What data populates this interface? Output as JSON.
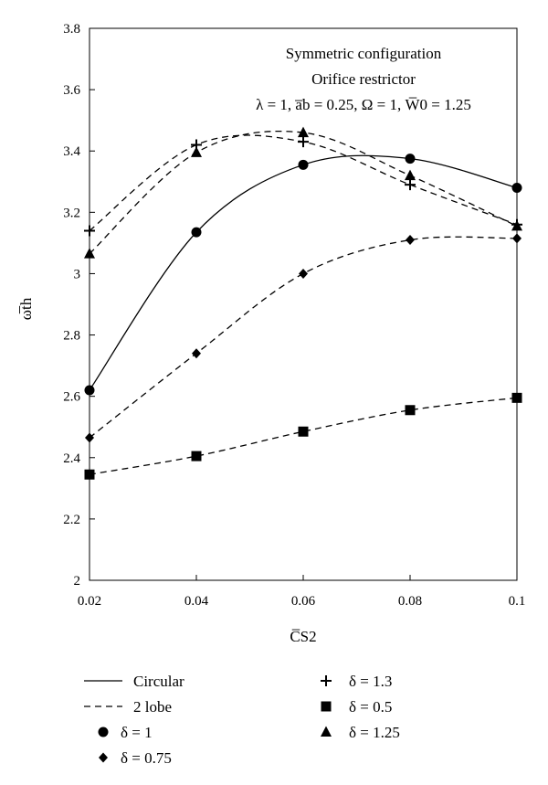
{
  "chart_data": {
    "type": "line",
    "annotations": [
      "Symmetric configuration",
      "Orifice restrictor",
      "λ = 1, a̅b = 0.25, Ω = 1, W̅0 = 1.25"
    ],
    "xlabel": "C̅S2",
    "ylabel": "ω̅th",
    "xlim": [
      0.02,
      0.1
    ],
    "ylim": [
      2,
      3.8
    ],
    "xticks": [
      0.02,
      0.04,
      0.06,
      0.08,
      0.1
    ],
    "xtick_labels": [
      "0.02",
      "0.04",
      "0.06",
      "0.08",
      "0.1"
    ],
    "yticks": [
      2,
      2.2,
      2.4,
      2.6,
      2.8,
      3,
      3.2,
      3.4,
      3.6,
      3.8
    ],
    "ytick_labels": [
      "2",
      "2.2",
      "2.4",
      "2.6",
      "2.8",
      "3",
      "3.2",
      "3.4",
      "3.6",
      "3.8"
    ],
    "grid": false,
    "legend_position": "bottom",
    "x": [
      0.02,
      0.04,
      0.06,
      0.08,
      0.1
    ],
    "series": [
      {
        "name": "δ = 1",
        "geometry": "circular",
        "linestyle": "solid",
        "marker": "circle",
        "values": [
          2.62,
          3.135,
          3.355,
          3.375,
          3.28
        ]
      },
      {
        "name": "δ = 1.3",
        "geometry": "2 lobe",
        "linestyle": "dashed",
        "marker": "plus",
        "values": [
          3.14,
          3.42,
          3.43,
          3.29,
          3.16
        ]
      },
      {
        "name": "δ = 1.25",
        "geometry": "2 lobe",
        "linestyle": "dashed",
        "marker": "triangle",
        "values": [
          3.065,
          3.395,
          3.46,
          3.32,
          3.155
        ]
      },
      {
        "name": "δ = 0.75",
        "geometry": "2 lobe",
        "linestyle": "dashed",
        "marker": "diamond",
        "values": [
          2.465,
          2.74,
          3.0,
          3.11,
          3.115
        ]
      },
      {
        "name": "δ = 0.5",
        "geometry": "2 lobe",
        "linestyle": "dashed",
        "marker": "square",
        "values": [
          2.345,
          2.405,
          2.485,
          2.555,
          2.595
        ]
      }
    ],
    "legend": [
      {
        "label": "Circular",
        "line": "solid"
      },
      {
        "label": "2 lobe",
        "line": "dashed"
      },
      {
        "label": "δ = 1",
        "marker": "circle"
      },
      {
        "label": "δ = 0.75",
        "marker": "diamond"
      },
      {
        "label": "δ = 1.3",
        "marker": "plus"
      },
      {
        "label": "δ = 0.5",
        "marker": "square"
      },
      {
        "label": "δ = 1.25",
        "marker": "triangle"
      }
    ]
  }
}
